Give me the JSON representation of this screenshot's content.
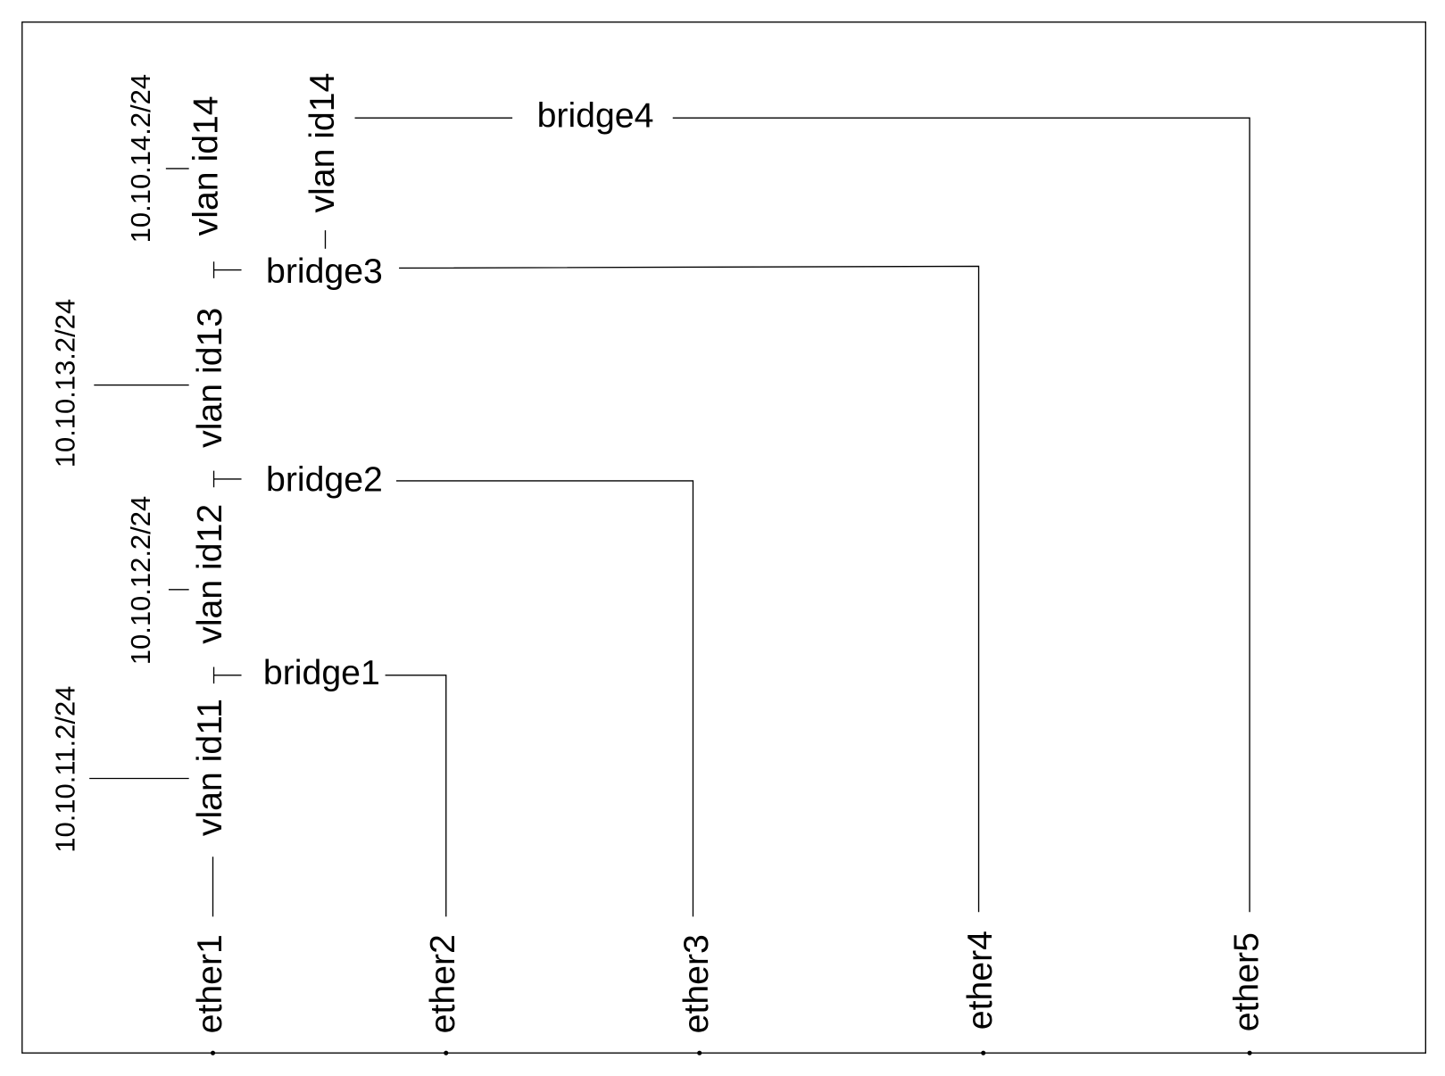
{
  "ports": [
    "ether1",
    "ether2",
    "ether3",
    "ether4",
    "ether5"
  ],
  "bridges": [
    "bridge1",
    "bridge2",
    "bridge3",
    "bridge4"
  ],
  "vlans": [
    "vlan id11",
    "vlan id12",
    "vlan id13",
    "vlan id14",
    "vlan id14"
  ],
  "addresses": [
    "10.10.11.2/24",
    "10.10.12.2/24",
    "10.10.13.2/24",
    "10.10.14.2/24"
  ]
}
